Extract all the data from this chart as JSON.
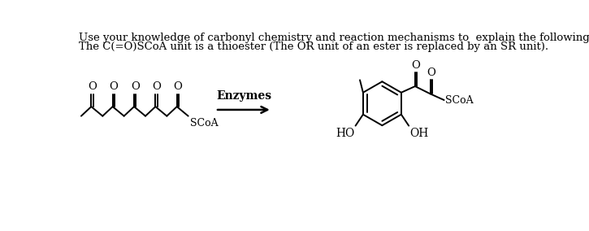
{
  "title_line1": "Use your knowledge of carbonyl chemistry and reaction mechanisms to  explain the following biological transformation.",
  "title_line2": "The C(=O)SCoA unit is a thioester (The OR unit of an ester is replaced by an SR unit).",
  "arrow_label": "Enzymes",
  "background_color": "#ffffff",
  "text_color": "#000000",
  "title_fontsize": 9.5,
  "label_fontsize": 10,
  "scoa_label": "SCoA",
  "ho_label": "HO",
  "oh_label": "OH",
  "o_label": "O"
}
